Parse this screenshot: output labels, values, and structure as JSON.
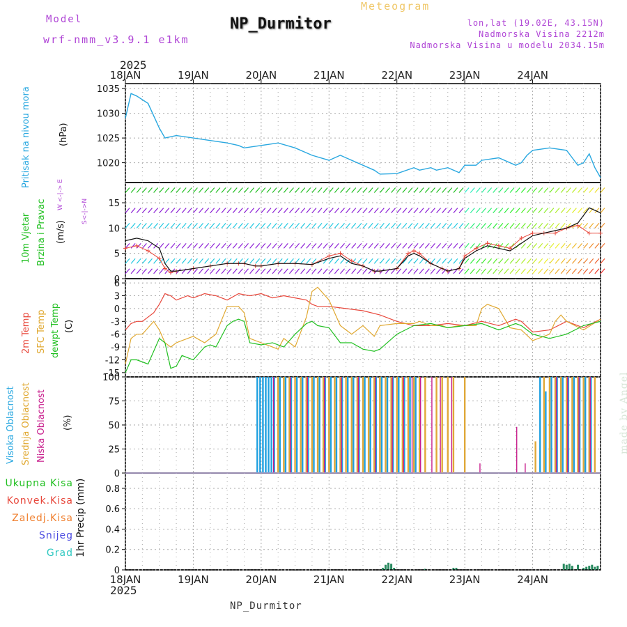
{
  "header": {
    "model_label": "Model",
    "model_name": "wrf-nmm_v3.9.1  e1km",
    "title": "NP_Durmitor",
    "subtitle": "Meteogram",
    "coords": "lon,lat (19.02E, 43.15N)",
    "elevation": "Nadmorska Visina 2212m",
    "model_elevation": "Nadmorska Visina u modelu 2034.15m"
  },
  "time_axis": {
    "year": "2025",
    "days": [
      "18JAN",
      "19JAN",
      "20JAN",
      "21JAN",
      "22JAN",
      "23JAN",
      "24JAN"
    ]
  },
  "footer": {
    "station": "NP_Durmitor",
    "credit": "made by Angel"
  },
  "panels": {
    "pressure": {
      "label": "Pritisak na nivou mora",
      "unit": "(hPa)"
    },
    "wind": {
      "label_1": "10m Vjetar",
      "label_2": "Brzina i Pravac",
      "unit": "(m/s)",
      "compass": "W <-|-> E",
      "compass_ns": "S<-|->N"
    },
    "temp": {
      "label_1": "2m Temp",
      "label_2": "SFC Temp",
      "label_3": "dewpt Temp",
      "unit": "(C)"
    },
    "cloud": {
      "label_1": "Visoka Oblacnost",
      "label_2": "Srednja Oblacnost",
      "label_3": "Niska Oblacnost",
      "unit": "(%)"
    },
    "precip": {
      "unit_label": "1hr Precip (mm)",
      "legend": [
        "Ukupna Kisa",
        "Konvek.Kisa",
        "Zaledj.Kisa",
        "Snijeg",
        "Grad"
      ]
    }
  },
  "colors": {
    "pressure": "#2aa8e0",
    "t2m": "#e8483c",
    "tsfc": "#e0a830",
    "dewpt": "#22c022",
    "cloud_high": "#1ea0e0",
    "cloud_mid": "#e0a838",
    "cloud_low": "#c81e8c",
    "precip_total": "#22c022",
    "precip_conv": "#e8483c",
    "precip_frz": "#f08030",
    "snow": "#4a4ae0",
    "hail": "#2ec8c0",
    "windbar": "#8c1fd6"
  },
  "chart_data": [
    {
      "type": "line",
      "panel": "pressure",
      "ylabel": "(hPa)",
      "ylim": [
        1016,
        1036
      ],
      "yticks": [
        1020,
        1025,
        1030,
        1035
      ],
      "x_unit": "hours since 18JAN 00",
      "series": [
        {
          "name": "Pritisak na nivou mora",
          "x": [
            0,
            2,
            4,
            8,
            12,
            14,
            18,
            24,
            30,
            36,
            40,
            42,
            48,
            54,
            60,
            66,
            72,
            76,
            78,
            84,
            88,
            90,
            96,
            102,
            104,
            108,
            110,
            114,
            118,
            120,
            124,
            126,
            132,
            138,
            140,
            142,
            144,
            150,
            156,
            158,
            160,
            162,
            164,
            166,
            168
          ],
          "y": [
            1029,
            1034,
            1033.5,
            1032,
            1027,
            1025,
            1025.5,
            1025,
            1024.5,
            1024,
            1023.5,
            1023,
            1023.5,
            1024,
            1023,
            1021.5,
            1020.5,
            1021.5,
            1021,
            1019.5,
            1018.5,
            1017.7,
            1017.8,
            1019,
            1018.5,
            1019,
            1018.5,
            1019,
            1018,
            1019.5,
            1019.5,
            1020.5,
            1021,
            1019.5,
            1020,
            1021.5,
            1022.5,
            1023,
            1022.5,
            1021,
            1019.5,
            1020,
            1021.8,
            1019,
            1017
          ]
        }
      ]
    },
    {
      "type": "line",
      "panel": "wind",
      "ylabel": "(m/s)",
      "ylim": [
        0,
        19
      ],
      "yticks": [
        0,
        5,
        10,
        15
      ],
      "x_unit": "hours since 18JAN 00",
      "series": [
        {
          "name": "speed",
          "x": [
            0,
            4,
            8,
            12,
            14,
            16,
            18,
            24,
            30,
            36,
            40,
            42,
            46,
            48,
            54,
            60,
            66,
            72,
            76,
            80,
            84,
            88,
            90,
            96,
            100,
            102,
            104,
            108,
            112,
            114,
            118,
            120,
            124,
            128,
            132,
            136,
            140,
            144,
            148,
            152,
            156,
            160,
            164,
            168
          ],
          "y": [
            7.5,
            8,
            7.5,
            6,
            3,
            1.5,
            1.5,
            2,
            2.5,
            3,
            3,
            3,
            2.5,
            2.5,
            3,
            3,
            2.8,
            4,
            4.5,
            3,
            2.5,
            1.5,
            1.5,
            2,
            4.5,
            5,
            4.5,
            3,
            2,
            1.5,
            2,
            4,
            5.5,
            6.5,
            6,
            5.5,
            7,
            8.5,
            9,
            9.5,
            10,
            11,
            14,
            13
          ]
        },
        {
          "name": "gust",
          "x": [
            0,
            4,
            8,
            12,
            14,
            16,
            18,
            24,
            30,
            36,
            40,
            42,
            46,
            48,
            54,
            60,
            66,
            72,
            76,
            80,
            84,
            88,
            90,
            96,
            100,
            102,
            104,
            108,
            112,
            114,
            118,
            120,
            124,
            128,
            132,
            136,
            140,
            144,
            148,
            152,
            156,
            160,
            164,
            168
          ],
          "y": [
            6,
            6.5,
            5.5,
            4,
            2,
            1.2,
            1.5,
            2,
            2.5,
            3,
            3,
            3,
            2.5,
            2.5,
            3,
            3,
            2.8,
            4.5,
            5,
            3.5,
            2.5,
            1.5,
            1.5,
            2,
            5,
            5.5,
            5,
            3,
            2,
            1.5,
            2,
            4.5,
            6,
            7,
            6.5,
            6,
            8,
            9,
            9,
            9,
            10,
            10.5,
            9,
            9
          ]
        }
      ]
    },
    {
      "type": "line",
      "panel": "temperature",
      "ylabel": "(C)",
      "ylim": [
        -16,
        7
      ],
      "yticks": [
        -15,
        -12,
        -9,
        -6,
        -3,
        0,
        3,
        6
      ],
      "x_unit": "hours since 18JAN 00",
      "series": [
        {
          "name": "2m Temp",
          "x": [
            0,
            2,
            4,
            6,
            10,
            12,
            14,
            16,
            18,
            22,
            24,
            28,
            32,
            36,
            40,
            44,
            48,
            52,
            56,
            60,
            64,
            66,
            68,
            72,
            78,
            84,
            90,
            96,
            102,
            108,
            114,
            120,
            126,
            132,
            138,
            140,
            144,
            150,
            156,
            162,
            168
          ],
          "y": [
            -5,
            -3.5,
            -3,
            -3,
            -1,
            1,
            3.5,
            3,
            2,
            3,
            2.5,
            3.5,
            3,
            2,
            3.5,
            3,
            3.5,
            2.5,
            3,
            2.5,
            2,
            1,
            0.5,
            0.5,
            0,
            -0.5,
            -1.5,
            -3,
            -4,
            -4,
            -3.5,
            -4,
            -3,
            -4,
            -2.5,
            -3,
            -5.5,
            -5,
            -3,
            -4.5,
            -2.5
          ]
        },
        {
          "name": "SFC Temp",
          "x": [
            0,
            2,
            4,
            6,
            10,
            12,
            14,
            16,
            18,
            22,
            24,
            28,
            32,
            36,
            40,
            42,
            44,
            48,
            52,
            54,
            56,
            60,
            64,
            66,
            68,
            72,
            76,
            80,
            84,
            88,
            90,
            96,
            102,
            104,
            108,
            112,
            114,
            118,
            120,
            124,
            126,
            128,
            132,
            136,
            140,
            144,
            150,
            152,
            154,
            156,
            162,
            168
          ],
          "y": [
            -13,
            -7,
            -6,
            -6,
            -3,
            -5,
            -8,
            -9,
            -8,
            -7,
            -6.5,
            -8,
            -6,
            0.5,
            0.5,
            -1,
            -7,
            -8,
            -9,
            -9.5,
            -7,
            -9,
            -2,
            4,
            5,
            2,
            -4,
            -6,
            -4,
            -6.5,
            -4,
            -3.5,
            -3.5,
            -3,
            -4,
            -4,
            -4.5,
            -4,
            -4,
            -4,
            0,
            1,
            0,
            -4.5,
            -5,
            -7.5,
            -6,
            -3,
            -1.5,
            -3,
            -5,
            -2.5
          ]
        },
        {
          "name": "dewpt Temp",
          "x": [
            0,
            2,
            4,
            6,
            8,
            10,
            12,
            14,
            16,
            18,
            20,
            24,
            28,
            30,
            32,
            36,
            38,
            40,
            42,
            44,
            48,
            52,
            56,
            60,
            64,
            66,
            68,
            72,
            76,
            80,
            84,
            88,
            90,
            96,
            102,
            108,
            114,
            120,
            126,
            132,
            138,
            140,
            144,
            150,
            156,
            162,
            168
          ],
          "y": [
            -15,
            -12,
            -12,
            -12.5,
            -13,
            -10,
            -7,
            -8,
            -14,
            -13.5,
            -11,
            -12,
            -9,
            -8.5,
            -9,
            -4,
            -3,
            -2.5,
            -3,
            -8,
            -8.5,
            -8,
            -9,
            -6,
            -3.5,
            -3,
            -4,
            -4.5,
            -8,
            -8,
            -9.5,
            -10,
            -9.5,
            -6,
            -4,
            -3.5,
            -4.5,
            -4,
            -3.5,
            -5,
            -3.5,
            -4,
            -6,
            -7,
            -6,
            -4,
            -3
          ]
        }
      ]
    },
    {
      "type": "bar",
      "panel": "cloud",
      "ylabel": "(%)",
      "ylim": [
        0,
        100
      ],
      "yticks": [
        0,
        25,
        50,
        75,
        100
      ],
      "x_unit": "hours since 18JAN 00",
      "series": [
        {
          "name": "Visoka Oblacnost",
          "x": [
            47,
            48,
            49,
            50,
            51,
            52,
            53,
            55,
            57,
            59,
            61,
            63,
            65,
            67,
            69,
            71,
            73,
            75,
            77,
            79,
            81,
            83,
            85,
            87,
            89,
            91,
            93,
            95,
            97,
            99,
            101,
            103,
            147,
            149,
            151,
            153,
            155,
            157,
            159,
            161,
            163,
            165
          ],
          "y": [
            100,
            100,
            100,
            100,
            100,
            100,
            100,
            100,
            100,
            100,
            100,
            100,
            100,
            100,
            100,
            100,
            100,
            100,
            100,
            100,
            100,
            100,
            100,
            100,
            100,
            100,
            100,
            100,
            100,
            100,
            100,
            100,
            100,
            85,
            100,
            100,
            100,
            100,
            100,
            100,
            100,
            100
          ]
        },
        {
          "name": "Srednja Oblacnost",
          "x": [
            54,
            56,
            58,
            60,
            62,
            64,
            66,
            68,
            70,
            72,
            74,
            76,
            78,
            80,
            82,
            84,
            86,
            88,
            90,
            92,
            94,
            96,
            98,
            100,
            102,
            104,
            106,
            110,
            112,
            114,
            116,
            120,
            145,
            148,
            150,
            152,
            154,
            156,
            158,
            160,
            162,
            164,
            166
          ],
          "y": [
            100,
            100,
            100,
            100,
            100,
            100,
            100,
            100,
            100,
            100,
            100,
            100,
            100,
            100,
            100,
            100,
            100,
            100,
            100,
            100,
            100,
            100,
            100,
            100,
            100,
            100,
            100,
            100,
            100,
            100,
            100,
            100,
            33,
            100,
            100,
            100,
            100,
            100,
            100,
            100,
            100,
            100,
            100
          ]
        },
        {
          "name": "Niska Oblacnost",
          "x": [
            52,
            58,
            64,
            70,
            76,
            82,
            88,
            94,
            98,
            101,
            104,
            108,
            111,
            115,
            125,
            138,
            141,
            152,
            156,
            160,
            164
          ],
          "y": [
            100,
            100,
            100,
            100,
            100,
            100,
            100,
            100,
            100,
            100,
            100,
            100,
            100,
            100,
            10,
            48,
            10,
            100,
            100,
            100,
            100
          ]
        }
      ]
    },
    {
      "type": "bar",
      "panel": "precip",
      "ylabel": "1hr Precip (mm)",
      "ylim": [
        0,
        0.95
      ],
      "yticks": [
        0,
        0.2,
        0.4,
        0.6,
        0.8
      ],
      "x_unit": "hours since 18JAN 00",
      "series": [
        {
          "name": "Ukupna Kisa",
          "x": [
            91,
            92,
            93,
            94,
            95,
            106,
            116,
            117,
            155,
            156,
            157,
            158,
            160,
            162,
            163,
            164,
            165,
            166,
            167
          ],
          "y": [
            0.02,
            0.05,
            0.07,
            0.06,
            0.02,
            0.01,
            0.02,
            0.02,
            0.06,
            0.05,
            0.06,
            0.04,
            0.05,
            0.02,
            0.03,
            0.04,
            0.05,
            0.03,
            0.04
          ]
        }
      ]
    }
  ]
}
